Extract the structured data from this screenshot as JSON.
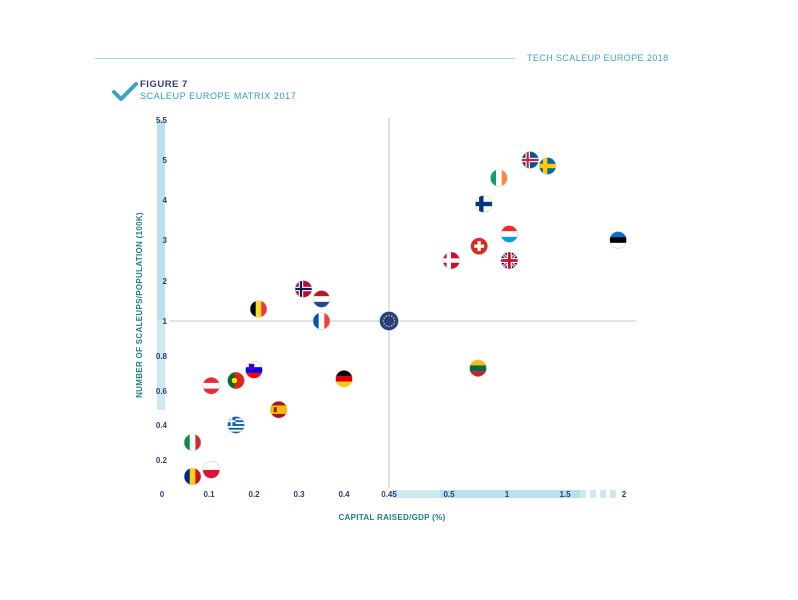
{
  "header": {
    "title": "TECH SCALEUP EUROPE 2018"
  },
  "figure": {
    "label": "FIGURE 7",
    "title": "SCALEUP EUROPE MATRIX 2017"
  },
  "chart_data": {
    "type": "scatter",
    "xlabel": "CAPITAL RAISED/GDP (%)",
    "ylabel": "NUMBER OF SCALEUPS/POPULATION (100K)",
    "x_ticks": [
      "0",
      "0.1",
      "0.2",
      "0.3",
      "0.4",
      "0.45",
      "0.5",
      "1",
      "1.5",
      "2"
    ],
    "y_ticks": [
      "0",
      "0.2",
      "0.4",
      "0.6",
      "0.8",
      "1",
      "2",
      "3",
      "4",
      "5",
      "5.5"
    ],
    "reference_point": {
      "x": 0.45,
      "y": 1
    },
    "points": [
      {
        "country": "Iceland",
        "flag": "iceland",
        "x": 1.2,
        "y": 5.0
      },
      {
        "country": "Sweden",
        "flag": "sweden",
        "x": 1.35,
        "y": 4.85
      },
      {
        "country": "Ireland",
        "flag": "ireland",
        "x": 0.93,
        "y": 4.55
      },
      {
        "country": "Finland",
        "flag": "finland",
        "x": 0.8,
        "y": 3.9
      },
      {
        "country": "Luxembourg",
        "flag": "luxembourg",
        "x": 1.02,
        "y": 3.15
      },
      {
        "country": "Estonia",
        "flag": "estonia",
        "x": 1.95,
        "y": 3.0
      },
      {
        "country": "Switzerland",
        "flag": "switzerland",
        "x": 0.76,
        "y": 2.85
      },
      {
        "country": "Denmark",
        "flag": "denmark",
        "x": 0.52,
        "y": 2.5
      },
      {
        "country": "United Kingdom",
        "flag": "united-kingdom",
        "x": 1.02,
        "y": 2.5
      },
      {
        "country": "Norway",
        "flag": "norway",
        "x": 0.31,
        "y": 1.8
      },
      {
        "country": "Netherlands",
        "flag": "netherlands",
        "x": 0.35,
        "y": 1.55
      },
      {
        "country": "Belgium",
        "flag": "belgium",
        "x": 0.21,
        "y": 1.3
      },
      {
        "country": "France",
        "flag": "france",
        "x": 0.35,
        "y": 1.0
      },
      {
        "country": "European Union",
        "flag": "eu",
        "x": 0.45,
        "y": 1.0
      },
      {
        "country": "Lithuania",
        "flag": "lithuania",
        "x": 0.75,
        "y": 0.73
      },
      {
        "country": "Slovenia",
        "flag": "slovenia",
        "x": 0.2,
        "y": 0.72
      },
      {
        "country": "Portugal",
        "flag": "portugal",
        "x": 0.16,
        "y": 0.66
      },
      {
        "country": "Germany",
        "flag": "germany",
        "x": 0.4,
        "y": 0.67
      },
      {
        "country": "Austria",
        "flag": "austria",
        "x": 0.105,
        "y": 0.63
      },
      {
        "country": "Spain",
        "flag": "spain",
        "x": 0.255,
        "y": 0.49
      },
      {
        "country": "Greece",
        "flag": "greece",
        "x": 0.16,
        "y": 0.4
      },
      {
        "country": "Italy",
        "flag": "italy",
        "x": 0.065,
        "y": 0.3
      },
      {
        "country": "Poland",
        "flag": "poland",
        "x": 0.105,
        "y": 0.14
      },
      {
        "country": "Romania",
        "flag": "romania",
        "x": 0.065,
        "y": 0.1
      }
    ]
  },
  "colors": {
    "navy": "#2c3e7a",
    "teal": "#1f7d8c",
    "light_blue": "#bfe6ee",
    "accent": "#3aa6c4"
  }
}
